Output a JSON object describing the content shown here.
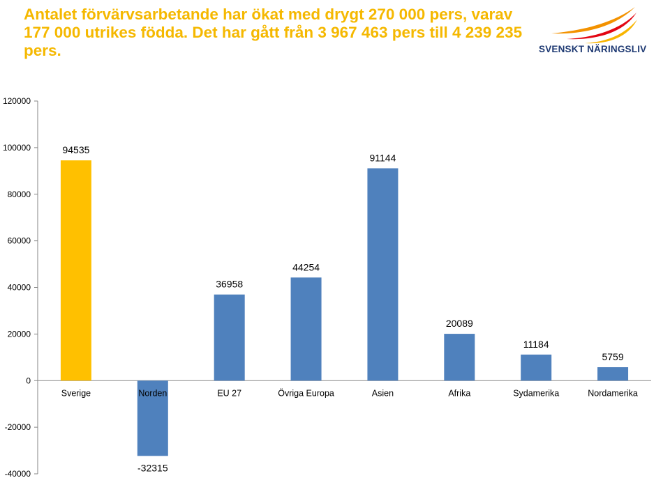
{
  "header": {
    "title": "Antalet förvärvsarbetande har ökat med drygt 270 000 pers, varav 177 000 utrikes födda.  Det har gått från 3 967 463 pers till 4 239 235 pers.",
    "logo_text": "SVENSKT NÄRINGSLIV"
  },
  "colors": {
    "title": "#f5b800",
    "highlight_bar": "#ffc000",
    "bar": "#4f81bd",
    "axis": "#868686",
    "logo_text": "#1f3a73",
    "logo_orange": "#f39200",
    "logo_red": "#e30613",
    "logo_yellow": "#f8b500"
  },
  "chart_data": {
    "type": "bar",
    "categories": [
      "Sverige",
      "Norden",
      "EU 27",
      "Övriga Europa",
      "Asien",
      "Afrika",
      "Sydamerika",
      "Nordamerika"
    ],
    "values": [
      94535,
      -32315,
      36958,
      44254,
      91144,
      20089,
      11184,
      5759
    ],
    "data_labels": [
      "94535",
      "-32315",
      "36958",
      "44254",
      "91144",
      "20089",
      "11184",
      "5759"
    ],
    "highlight_index": 0,
    "ylim": [
      -40000,
      120000
    ],
    "yticks": [
      -40000,
      -20000,
      0,
      20000,
      40000,
      60000,
      80000,
      100000,
      120000
    ],
    "ytick_labels": [
      "-40000",
      "-20000",
      "0",
      "20000",
      "40000",
      "60000",
      "80000",
      "100000",
      "120000"
    ],
    "title": "",
    "xlabel": "",
    "ylabel": "",
    "grid": false,
    "legend": "none"
  }
}
